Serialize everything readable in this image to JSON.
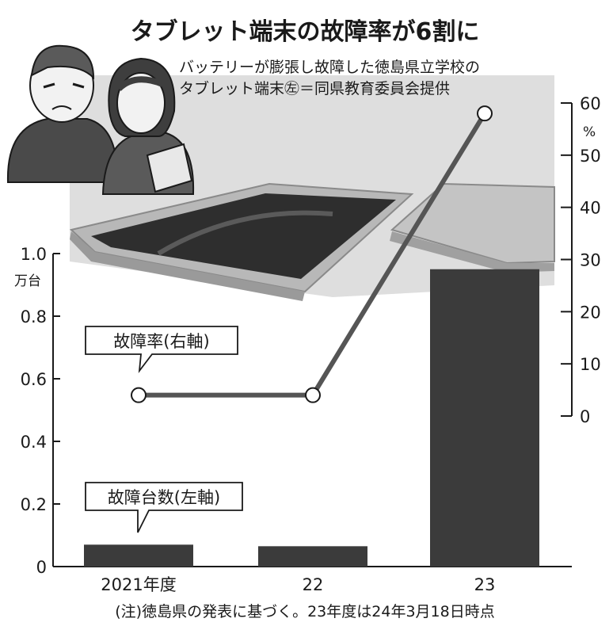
{
  "title": "タブレット端末の故障率が6割に",
  "photo_caption": {
    "line1": "バッテリーが膨張し故障した徳島県立学校の",
    "line2": "タブレット端末㊧＝同県教育委員会提供"
  },
  "note": "(注)徳島県の発表に基づく。23年度は24年3月18日時点",
  "chart_data": {
    "type": "bar+line",
    "title": "タブレット端末の故障率が6割に",
    "categories": [
      "2021年度",
      "22",
      "23"
    ],
    "left_axis": {
      "unit": "万台",
      "range": [
        0,
        1.0
      ],
      "ticks": [
        "0",
        "0.2",
        "0.4",
        "0.6",
        "0.8",
        "1.0"
      ],
      "tick_values": [
        0,
        0.2,
        0.4,
        0.6,
        0.8,
        1.0
      ]
    },
    "right_axis": {
      "unit": "%",
      "range": [
        0,
        60
      ],
      "ticks": [
        "0",
        "10",
        "20",
        "30",
        "40",
        "50",
        "60"
      ],
      "tick_values": [
        0,
        10,
        20,
        30,
        40,
        50,
        60
      ]
    },
    "series": [
      {
        "name": "故障台数(左軸)",
        "label": "故障台数(左軸)",
        "type": "bar",
        "axis": "left",
        "values": [
          0.07,
          0.065,
          0.95
        ]
      },
      {
        "name": "故障率(右軸)",
        "label": "故障率(右軸)",
        "type": "line",
        "axis": "right",
        "values": [
          4,
          4,
          58
        ]
      }
    ]
  },
  "colors": {
    "bar": "#3b3b3b",
    "line": "#555555",
    "ink": "#1a1a1a",
    "photo_bg": "#dcdcdc"
  },
  "illustration": {
    "icon": "worried-people-with-tablet-icon",
    "photo": "swollen-tablet-photo-icon"
  }
}
